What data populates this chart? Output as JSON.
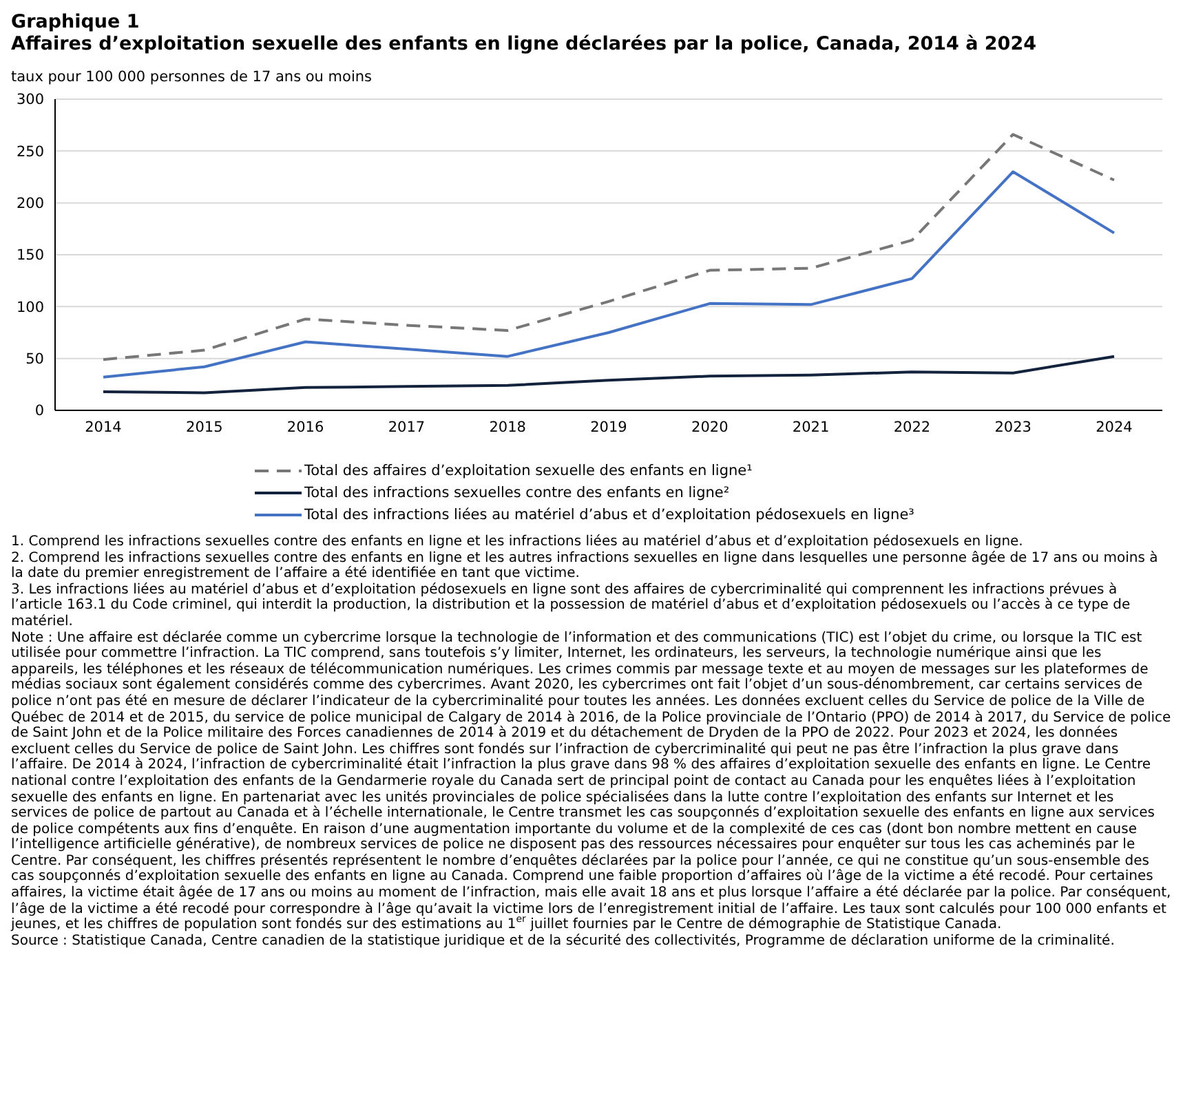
{
  "chart_data": {
    "type": "line",
    "title": "Graphique 1",
    "subtitle": "Affaires d’exploitation sexuelle des enfants en ligne déclarées par la police, Canada, 2014 à 2024",
    "ylabel": "taux pour 100 000 personnes de 17 ans ou moins",
    "categories": [
      "2014",
      "2015",
      "2016",
      "2017",
      "2018",
      "2019",
      "2020",
      "2021",
      "2022",
      "2023",
      "2024"
    ],
    "series": [
      {
        "name": "Total des affaires d’exploitation sexuelle des enfants en ligne¹",
        "color": "#777777",
        "line_style": "dashed",
        "values": [
          49,
          58,
          88,
          82,
          77,
          105,
          135,
          137,
          164,
          266,
          222
        ]
      },
      {
        "name": "Total des infractions sexuelles contre des enfants en ligne²",
        "color": "#14233d",
        "line_style": "solid",
        "values": [
          18,
          17,
          22,
          23,
          24,
          29,
          33,
          34,
          37,
          36,
          52
        ]
      },
      {
        "name": "Total des infractions liées au matériel d’abus et d’exploitation pédosexuels en ligne³",
        "color": "#4472c4",
        "line_style": "solid",
        "values": [
          32,
          42,
          66,
          59,
          52,
          75,
          103,
          102,
          127,
          230,
          171
        ]
      }
    ],
    "ylim": [
      0,
      300
    ],
    "yticks": [
      0,
      50,
      100,
      150,
      200,
      250,
      300
    ],
    "grid": "y",
    "legend": "bottom",
    "marker": "none",
    "annotations": [
      "1. Comprend les infractions sexuelles contre des enfants en ligne et les infractions liées au matériel d’abus et d’exploitation pédosexuels en ligne.",
      "2. Comprend les infractions sexuelles contre des enfants en ligne et les autres infractions sexuelles en ligne dans lesquelles une personne âgée de 17 ans ou moins à la date du premier enregistrement de l’affaire a été identifiée en tant que victime.",
      "3. Les infractions liées au matériel d’abus et d’exploitation pédosexuels en ligne sont des affaires de cybercriminalité qui comprennent les infractions prévues à l’article 163.1 du Code criminel, qui interdit la production, la distribution et la possession de matériel d’abus et d’exploitation pédosexuels ou l’accès à ce type de matériel.",
      "Note : Une affaire est déclarée comme un cybercrime lorsque la technologie de l’information et des communications (TIC) est l’objet du crime, ou lorsque la TIC est utilisée pour commettre l’infraction. La TIC comprend, sans toutefois s’y limiter, Internet, les ordinateurs, les serveurs, la technologie numérique ainsi que les appareils, les téléphones et les réseaux de télécommunication numériques. Les crimes commis par message texte et au moyen de messages sur les plateformes de médias sociaux sont également considérés comme des cybercrimes. Avant 2020, les cybercrimes ont fait l’objet d’un sous-dénombrement, car certains services de police n’ont pas été en mesure de déclarer l’indicateur de la cybercriminalité pour toutes les années. Les données excluent celles du Service de police de la Ville de Québec de 2014 et de 2015, du service de police municipal de Calgary de 2014 à 2016, de la Police provinciale de l’Ontario (PPO) de 2014 à 2017, du Service de police de Saint John et de la Police militaire des Forces canadiennes de 2014 à 2019 et du détachement de Dryden de la PPO de 2022. Pour 2023 et 2024, les données excluent celles du Service de police de Saint John. Les chiffres sont fondés sur l’infraction de cybercriminalité qui peut ne pas être l’infraction la plus grave dans l’affaire. De 2014 à 2024, l’infraction de cybercriminalité était l’infraction la plus grave dans 98 % des affaires d’exploitation sexuelle des enfants en ligne. Le Centre national contre l’exploitation des enfants de la Gendarmerie royale du Canada sert de principal point de contact au Canada pour les enquêtes liées à l’exploitation sexuelle des enfants en ligne. En partenariat avec les unités provinciales de police spécialisées dans la lutte contre l’exploitation des enfants sur Internet et les services de police de partout au Canada et à l’échelle internationale, le Centre transmet les cas soupçonnés d’exploitation sexuelle des enfants en ligne aux services de police compétents aux fins d’enquête. En raison d’une augmentation importante du volume et de la complexité de ces cas (dont bon nombre mettent en cause l’intelligence artificielle générative), de nombreux services de police ne disposent pas des ressources nécessaires pour enquêter sur tous les cas acheminés par le Centre. Par conséquent, les chiffres présentés représentent le nombre d’enquêtes déclarées par la police pour l’année, ce qui ne constitue qu’un sous-ensemble des cas soupçonnés d’exploitation sexuelle des enfants en ligne au Canada. Comprend une faible proportion d’affaires où l’âge de la victime a été recodé. Pour certaines affaires, la victime était âgée de 17 ans ou moins au moment de l’infraction, mais elle avait 18 ans et plus lorsque l’affaire a été déclarée par la police. Par conséquent, l’âge de la victime a été recodé pour correspondre à l’âge qu’avait la victime lors de l’enregistrement initial de l’affaire. Les taux sont calculés pour 100 000 enfants et jeunes, et les chiffres de population sont fondés sur des estimations au 1$^{er}$ juillet fournies par le Centre de démographie de Statistique Canada.",
      "Source : Statistique Canada, Centre canadien de la statistique juridique et de la sécurité des collectivités, Programme de déclaration uniforme de la criminalité."
    ]
  }
}
